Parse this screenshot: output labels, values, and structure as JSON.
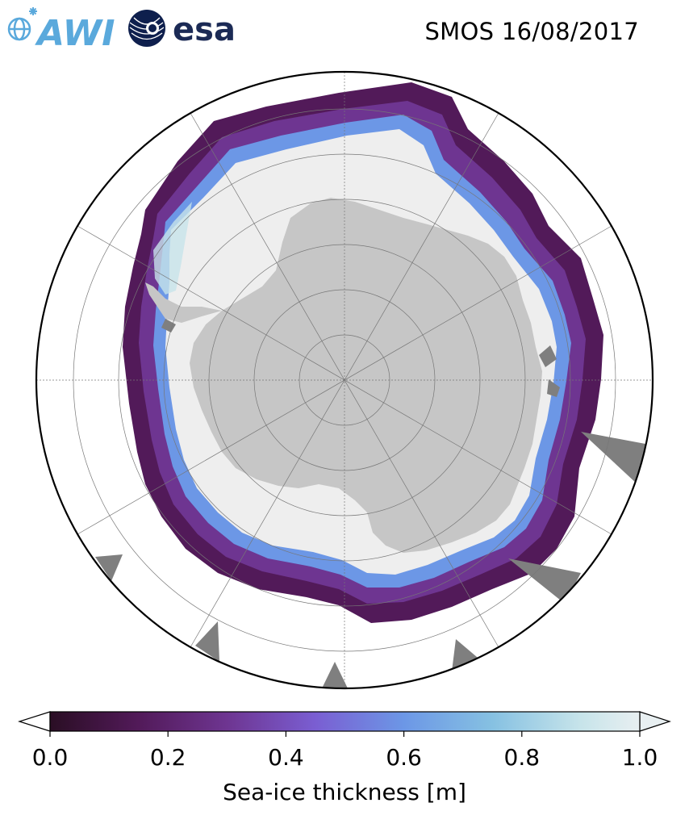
{
  "title": "SMOS 16/08/2017",
  "logos": {
    "left": {
      "icon": "awi-logo",
      "text": "AWI"
    },
    "right": {
      "icon": "esa-logo",
      "text": "esa"
    }
  },
  "map": {
    "projection": "south-polar-stereographic",
    "gridlines": true,
    "colors": {
      "land": "#c6c6c6",
      "thick_ice": "#eeeeee",
      "mask": "#7f7f7f",
      "frame": "#000000"
    }
  },
  "colorbar": {
    "label": "Sea-ice thickness [m]",
    "min": 0.0,
    "max": 1.0,
    "extend": "both",
    "ticks": [
      {
        "value": 0.0,
        "label": "0.0"
      },
      {
        "value": 0.2,
        "label": "0.2"
      },
      {
        "value": 0.4,
        "label": "0.4"
      },
      {
        "value": 0.6,
        "label": "0.6"
      },
      {
        "value": 0.8,
        "label": "0.8"
      },
      {
        "value": 1.0,
        "label": "1.0"
      }
    ],
    "colormap": [
      {
        "value": 0.0,
        "color": "#2a0e24"
      },
      {
        "value": 0.15,
        "color": "#521a59"
      },
      {
        "value": 0.3,
        "color": "#6e3591"
      },
      {
        "value": 0.45,
        "color": "#7a5ed2"
      },
      {
        "value": 0.6,
        "color": "#6c97e6"
      },
      {
        "value": 0.75,
        "color": "#86c1e2"
      },
      {
        "value": 0.9,
        "color": "#c7e4ea"
      },
      {
        "value": 1.0,
        "color": "#e8eff1"
      }
    ]
  }
}
